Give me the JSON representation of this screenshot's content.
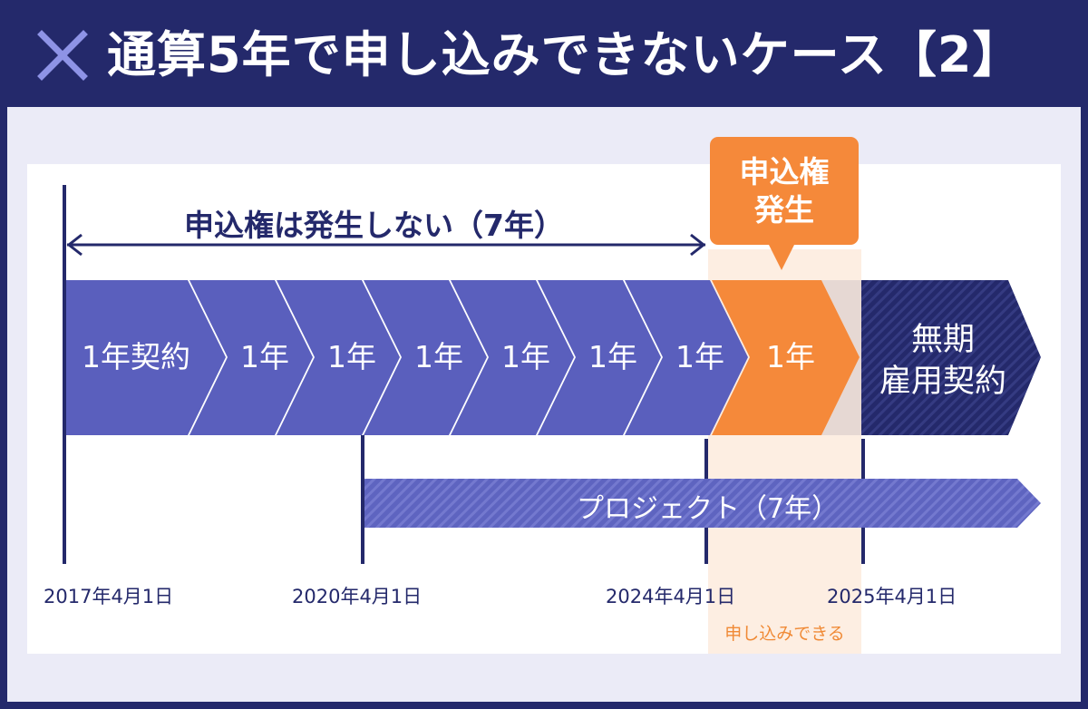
{
  "title": "通算5年で申し込みできないケース【2】",
  "icons": {
    "title_icon": "cross-icon"
  },
  "range": {
    "label": "申込権は発生しない（7年）"
  },
  "callout": {
    "line1": "申込権",
    "line2": "発生"
  },
  "segments": [
    {
      "label": "1年契約",
      "state": "contract"
    },
    {
      "label": "1年",
      "state": "contract"
    },
    {
      "label": "1年",
      "state": "contract"
    },
    {
      "label": "1年",
      "state": "contract"
    },
    {
      "label": "1年",
      "state": "contract"
    },
    {
      "label": "1年",
      "state": "contract"
    },
    {
      "label": "1年",
      "state": "contract"
    },
    {
      "label": "1年",
      "state": "right-arises"
    }
  ],
  "final_segment": {
    "line1": "無期",
    "line2": "雇用契約"
  },
  "project": {
    "label": "プロジェクト（7年）"
  },
  "dates": [
    "2017年4月1日",
    "2020年4月1日",
    "2024年4月1日",
    "2025年4月1日"
  ],
  "apply_note": "申し込みできる",
  "colors": {
    "navy": "#24296b",
    "contract": "#5a5fbd",
    "orange": "#f5893a",
    "apply_window": "#fdeee2",
    "project": "#6a70c8",
    "background": "#ebebf7"
  }
}
